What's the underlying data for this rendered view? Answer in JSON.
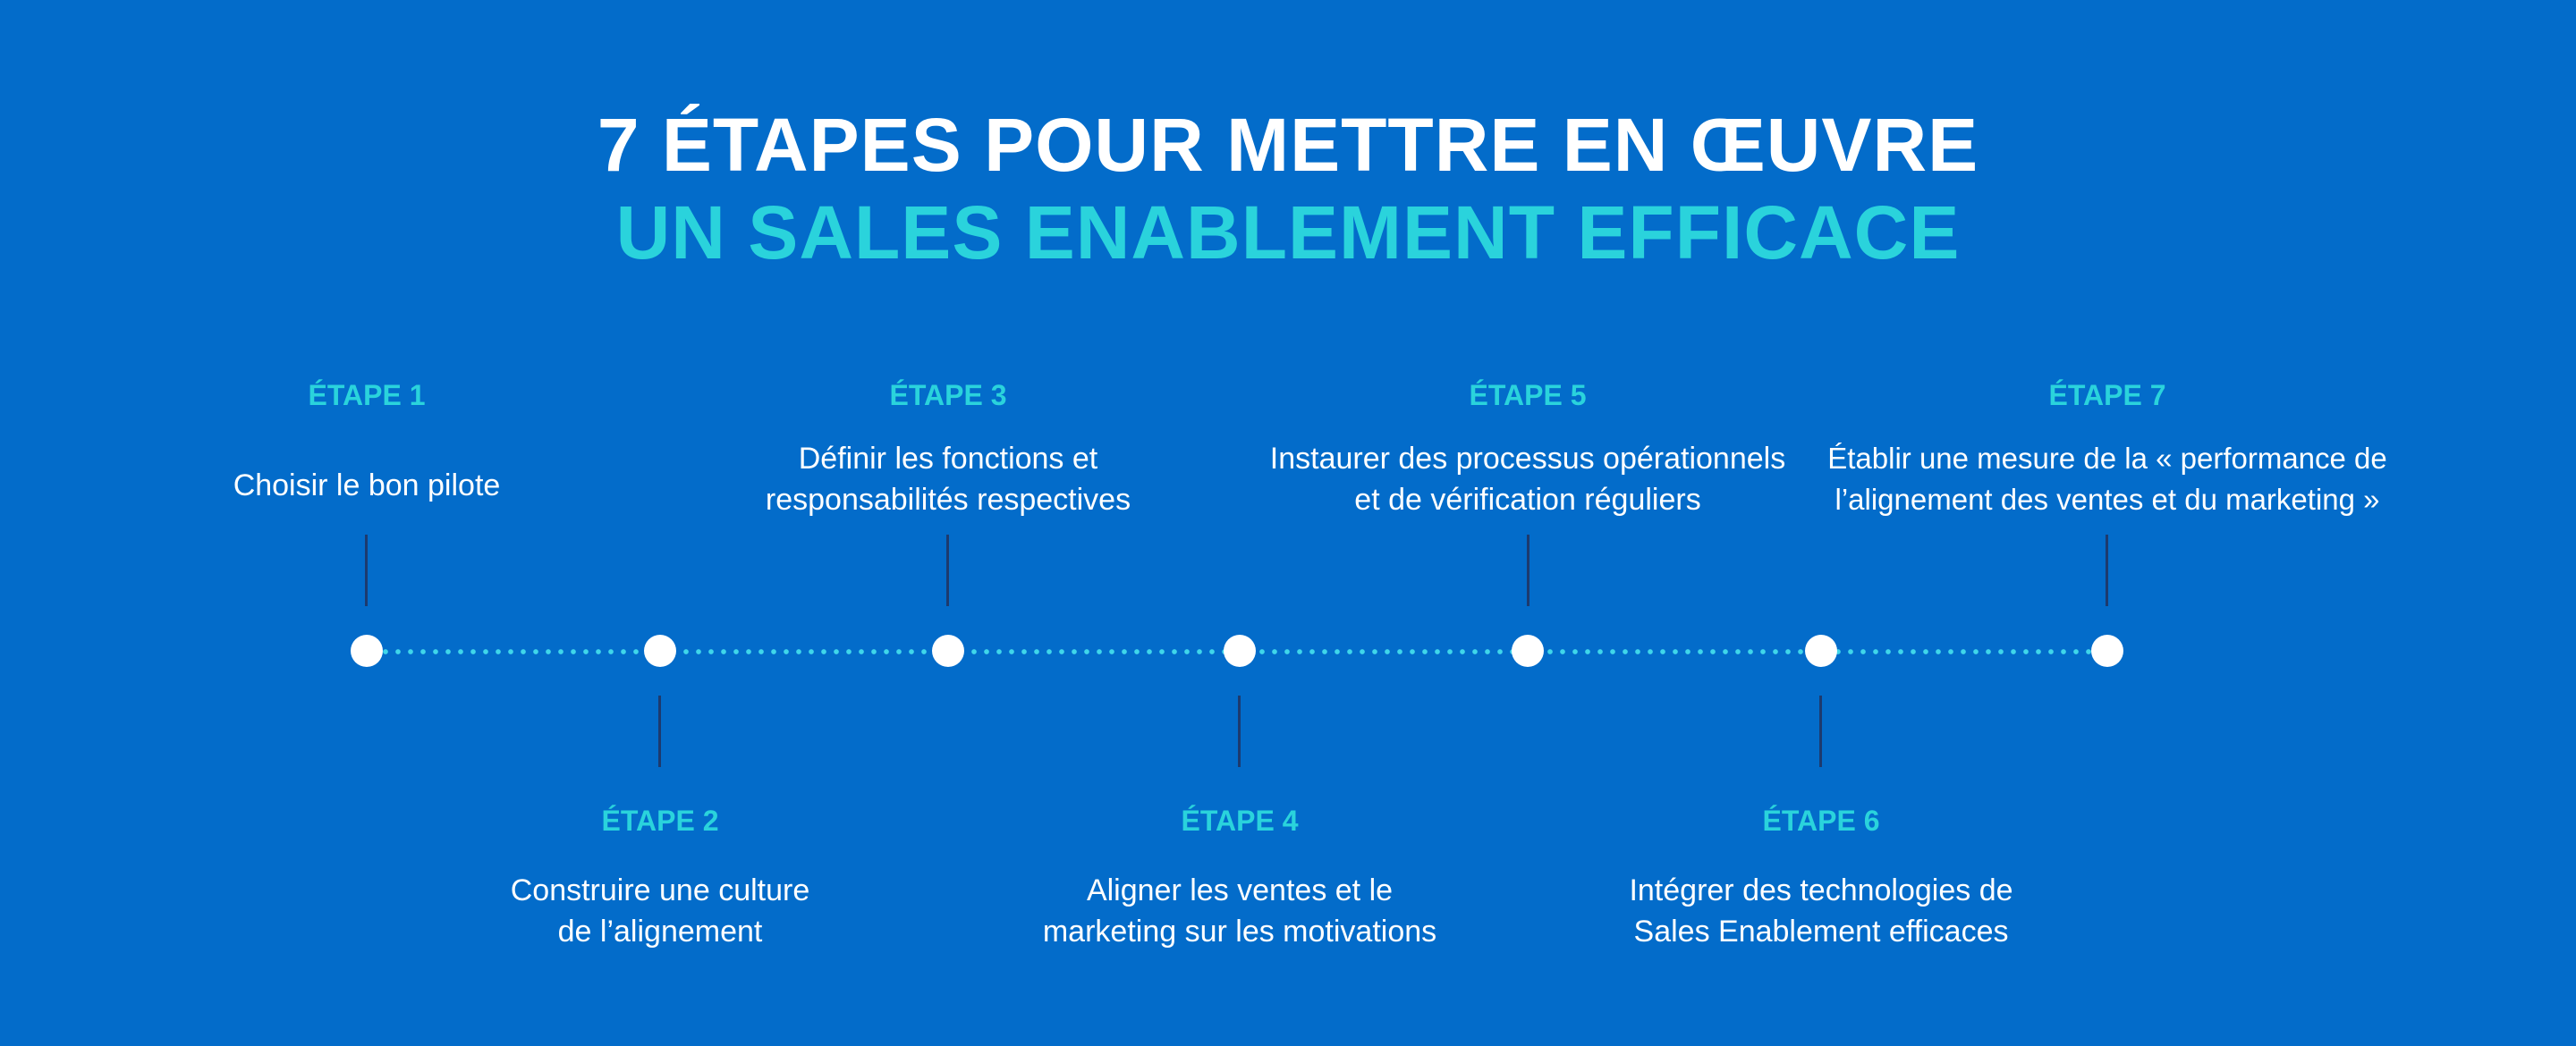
{
  "header": {
    "title_line1": "7 ÉTAPES POUR METTRE EN ŒUVRE",
    "title_line2": "UN SALES ENABLEMENT EFFICACE"
  },
  "steps": [
    {
      "label": "ÉTAPE 1",
      "line1": "Choisir le bon pilote",
      "line2": ""
    },
    {
      "label": "ÉTAPE 2",
      "line1": "Construire une culture",
      "line2": "de l’alignement"
    },
    {
      "label": "ÉTAPE 3",
      "line1": "Définir les fonctions et",
      "line2": "responsabilités respectives"
    },
    {
      "label": "ÉTAPE 4",
      "line1": "Aligner les ventes et le",
      "line2": "marketing sur les motivations"
    },
    {
      "label": "ÉTAPE 5",
      "line1": "Instaurer des processus opérationnels",
      "line2": "et de vérification réguliers"
    },
    {
      "label": "ÉTAPE 6",
      "line1": "Intégrer des technologies de",
      "line2": "Sales Enablement efficaces"
    },
    {
      "label": "ÉTAPE 7",
      "line1": "Établir une mesure de la « performance de",
      "line2": "l’alignement des ventes et du marketing »"
    }
  ],
  "colors": {
    "background": "#036cca",
    "accent": "#2ad3dc",
    "text": "#ffffff",
    "connector": "#1d3a6e"
  }
}
